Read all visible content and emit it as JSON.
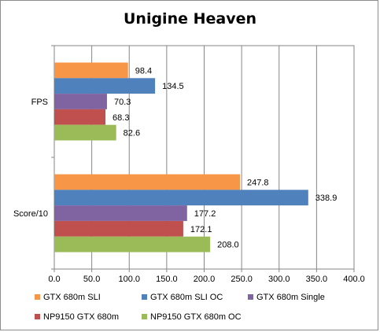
{
  "chart_data": {
    "type": "bar",
    "orientation": "horizontal",
    "title": "Unigine Heaven",
    "categories": [
      "FPS",
      "Score/10"
    ],
    "series": [
      {
        "name": "GTX 680m SLI",
        "color": "#f79646",
        "values": [
          98.4,
          247.8
        ],
        "labels": [
          "98.4",
          "247.8"
        ]
      },
      {
        "name": "GTX 680m SLI OC",
        "color": "#4f81bd",
        "values": [
          134.5,
          338.9
        ],
        "labels": [
          "134.5",
          "338.9"
        ]
      },
      {
        "name": "GTX 680m Single",
        "color": "#8064a2",
        "values": [
          70.3,
          177.2
        ],
        "labels": [
          "70.3",
          "177.2"
        ]
      },
      {
        "name": "NP9150 GTX 680m",
        "color": "#c0504d",
        "values": [
          68.3,
          172.1
        ],
        "labels": [
          "68.3",
          "172.1"
        ]
      },
      {
        "name": "NP9150 GTX 680m OC",
        "color": "#9bbb59",
        "values": [
          82.6,
          208.0
        ],
        "labels": [
          "82.6",
          "208.0"
        ]
      }
    ],
    "xlim": [
      0,
      400
    ],
    "xticks": [
      "0.0",
      "50.0",
      "100.0",
      "150.0",
      "200.0",
      "250.0",
      "300.0",
      "350.0",
      "400.0"
    ],
    "grid": true,
    "legend_position": "bottom"
  }
}
